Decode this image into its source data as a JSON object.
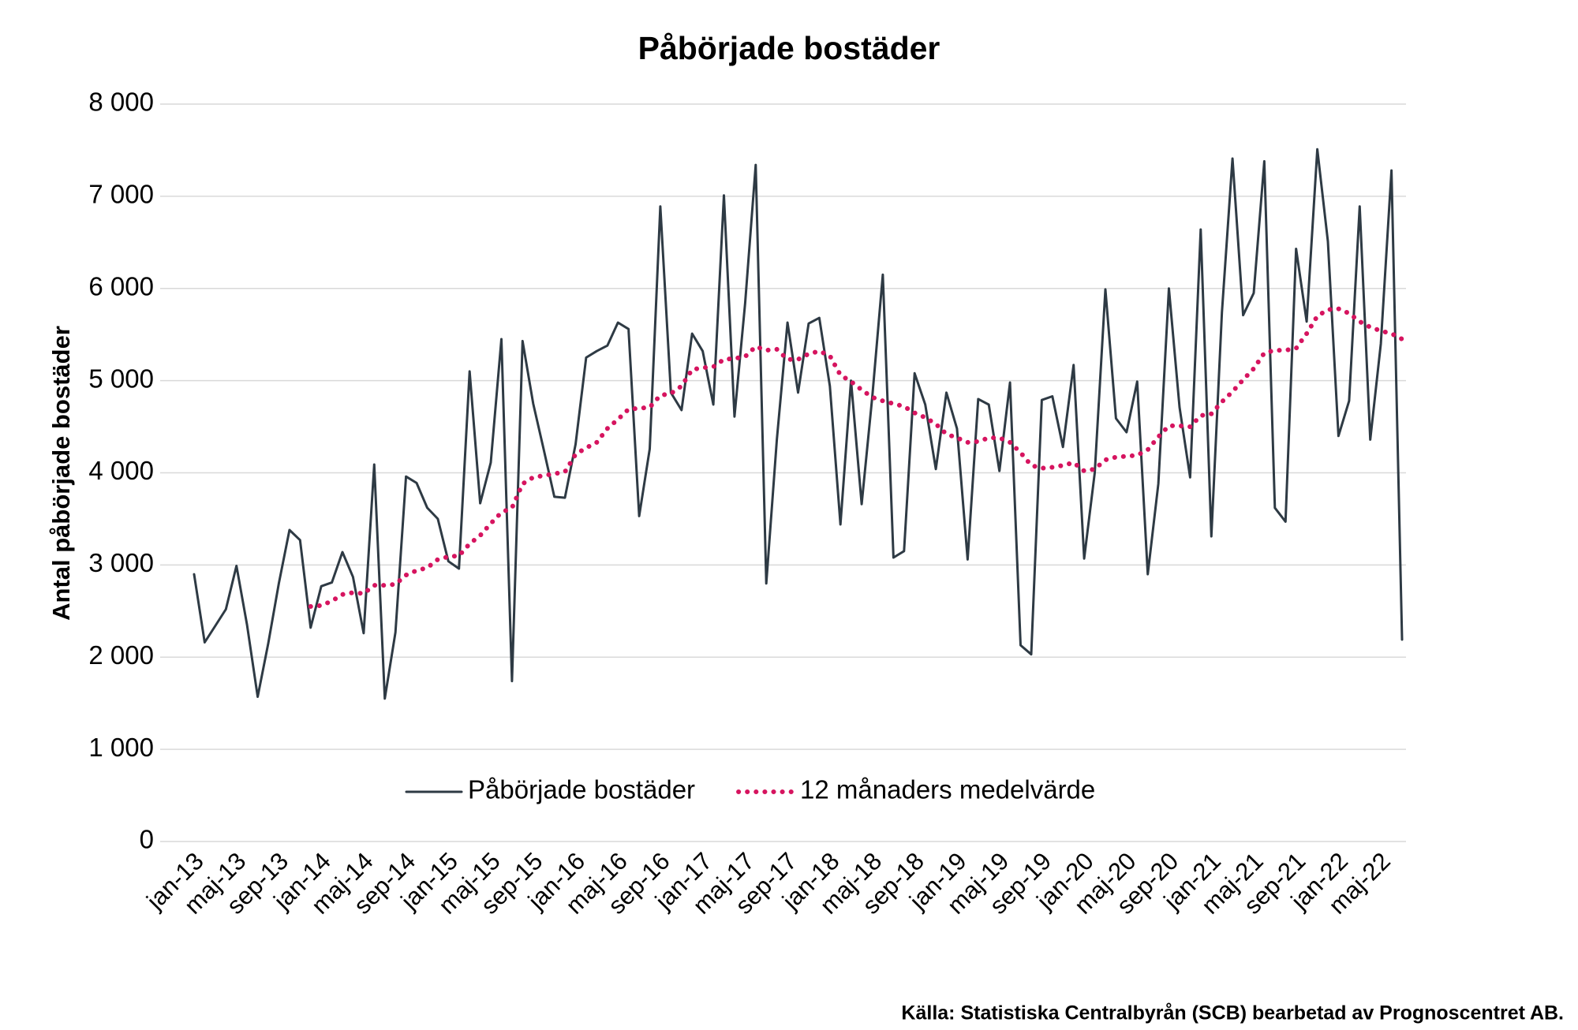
{
  "chart_data": {
    "type": "line",
    "title": "Påbörjade bostäder",
    "ylabel": "Antal påbörjade bostäder",
    "source": "Källa: Statistiska Centralbyrån (SCB) bearbetad av Prognoscentret AB.",
    "categories": [
      "jan-13",
      null,
      null,
      null,
      "maj-13",
      null,
      null,
      null,
      "sep-13",
      null,
      null,
      null,
      "jan-14",
      null,
      null,
      null,
      "maj-14",
      null,
      null,
      null,
      "sep-14",
      null,
      null,
      null,
      "jan-15",
      null,
      null,
      null,
      "maj-15",
      null,
      null,
      null,
      "sep-15",
      null,
      null,
      null,
      "jan-16",
      null,
      null,
      null,
      "maj-16",
      null,
      null,
      null,
      "sep-16",
      null,
      null,
      null,
      "jan-17",
      null,
      null,
      null,
      "maj-17",
      null,
      null,
      null,
      "sep-17",
      null,
      null,
      null,
      "jan-18",
      null,
      null,
      null,
      "maj-18",
      null,
      null,
      null,
      "sep-18",
      null,
      null,
      null,
      "jan-19",
      null,
      null,
      null,
      "maj-19",
      null,
      null,
      null,
      "sep-19",
      null,
      null,
      null,
      "jan-20",
      null,
      null,
      null,
      "maj-20",
      null,
      null,
      null,
      "sep-20",
      null,
      null,
      null,
      "jan-21",
      null,
      null,
      null,
      "maj-21",
      null,
      null,
      null,
      "sep-21",
      null,
      null,
      null,
      "jan-22",
      null,
      null,
      null,
      "maj-22",
      null,
      null
    ],
    "series": [
      {
        "name": "Påbörjade bostäder",
        "color": "#2e3a44",
        "style": "solid",
        "values": [
          2900,
          2160,
          2340,
          2520,
          2990,
          2350,
          1570,
          2150,
          2800,
          3380,
          3270,
          2320,
          2770,
          2810,
          3140,
          2870,
          2260,
          4090,
          1550,
          2270,
          3960,
          3890,
          3620,
          3500,
          3040,
          2960,
          5100,
          3670,
          4110,
          5450,
          1740,
          5430,
          4750,
          4250,
          3740,
          3730,
          4310,
          5250,
          5320,
          5380,
          5630,
          5560,
          3530,
          4260,
          6890,
          4870,
          4680,
          5510,
          5320,
          4740,
          7010,
          4610,
          5840,
          7340,
          2800,
          4360,
          5630,
          4870,
          5620,
          5680,
          4940,
          3440,
          5000,
          3660,
          4820,
          6150,
          3080,
          3150,
          5080,
          4740,
          4040,
          4870,
          4480,
          3060,
          4800,
          4740,
          4020,
          4980,
          2130,
          2030,
          4790,
          4830,
          4280,
          5170,
          3070,
          4000,
          5990,
          4590,
          4440,
          4990,
          2900,
          3880,
          6000,
          4710,
          3950,
          6640,
          3310,
          5740,
          7410,
          5710,
          5950,
          7380,
          3620,
          3470,
          6430,
          5640,
          7510,
          6510,
          4400,
          4780,
          6890,
          4360,
          5400,
          7280,
          2190
        ]
      },
      {
        "name": "12 månaders medelvärde",
        "color": "#d6145f",
        "style": "dotted",
        "values": [
          null,
          null,
          null,
          null,
          null,
          null,
          null,
          null,
          null,
          null,
          null,
          2550,
          2560,
          2610,
          2680,
          2700,
          2690,
          2780,
          2780,
          2790,
          2890,
          2940,
          2970,
          3060,
          3090,
          3100,
          3230,
          3320,
          3450,
          3570,
          3620,
          3880,
          3950,
          3970,
          3990,
          4010,
          4200,
          4270,
          4330,
          4480,
          4580,
          4690,
          4700,
          4710,
          4840,
          4860,
          4940,
          5120,
          5140,
          5150,
          5230,
          5240,
          5260,
          5370,
          5330,
          5340,
          5230,
          5230,
          5290,
          5320,
          5270,
          5060,
          4990,
          4900,
          4820,
          4780,
          4750,
          4720,
          4650,
          4600,
          4530,
          4420,
          4380,
          4330,
          4340,
          4380,
          4380,
          4330,
          4220,
          4080,
          4050,
          4060,
          4080,
          4110,
          4020,
          4040,
          4140,
          4170,
          4180,
          4190,
          4250,
          4390,
          4510,
          4510,
          4500,
          4620,
          4640,
          4770,
          4880,
          5010,
          5130,
          5300,
          5330,
          5330,
          5350,
          5510,
          5700,
          5770,
          5780,
          5730,
          5640,
          5580,
          5540,
          5510,
          5450
        ]
      }
    ],
    "ylim": [
      0,
      8000
    ],
    "yticks": [
      0,
      {
        "value": 1000,
        "label": "1 000"
      },
      {
        "value": 2000,
        "label": "2 000"
      },
      {
        "value": 3000,
        "label": "3 000"
      },
      {
        "value": 4000,
        "label": "4 000"
      },
      {
        "value": 5000,
        "label": "5 000"
      },
      {
        "value": 6000,
        "label": "6 000"
      },
      {
        "value": 7000,
        "label": "7 000"
      },
      {
        "value": 8000,
        "label": "8 000"
      }
    ],
    "grid": true,
    "legend": "bottom"
  }
}
